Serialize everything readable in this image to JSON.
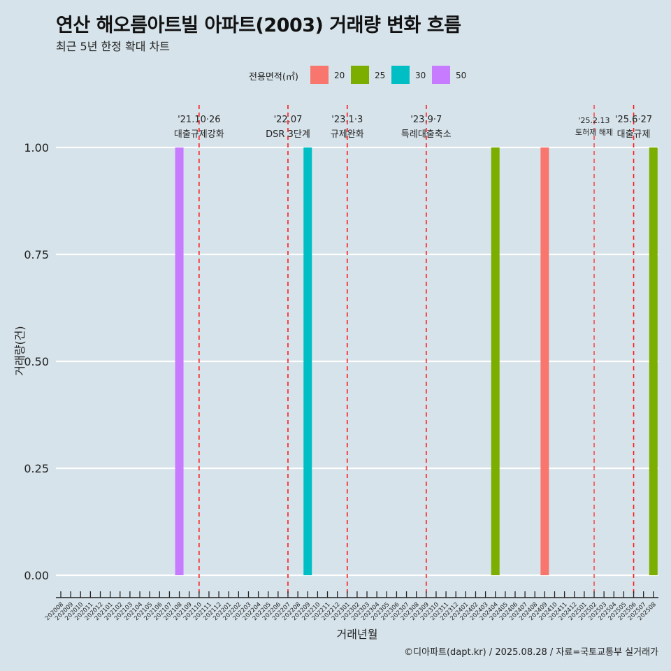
{
  "title": "연산 해오름아트빌 아파트(2003) 거래량 변화 흐름",
  "subtitle": "최근 5년 한정 확대 차트",
  "caption": "©디아파트(dapt.kr) / 2025.08.28 / 자료=국토교통부 실거래가",
  "legend": {
    "title": "전용면적(㎡)",
    "items": [
      {
        "label": "20",
        "color": "#f8766d"
      },
      {
        "label": "25",
        "color": "#7cae00"
      },
      {
        "label": "30",
        "color": "#00bfc4"
      },
      {
        "label": "50",
        "color": "#c77cff"
      }
    ]
  },
  "chart_data": {
    "type": "bar",
    "xlabel": "거래년월",
    "ylabel": "거래량(건)",
    "ylim": [
      0,
      1
    ],
    "yticks": [
      "0.00",
      "0.25",
      "0.50",
      "0.75",
      "1.00"
    ],
    "grid": true,
    "legend_position": "top",
    "categories": [
      "202008",
      "202009",
      "202010",
      "202011",
      "202012",
      "202101",
      "202102",
      "202103",
      "202104",
      "202105",
      "202106",
      "202107",
      "202108",
      "202109",
      "202110",
      "202111",
      "202112",
      "202201",
      "202202",
      "202203",
      "202204",
      "202205",
      "202206",
      "202207",
      "202208",
      "202209",
      "202210",
      "202211",
      "202212",
      "202301",
      "202302",
      "202303",
      "202304",
      "202305",
      "202306",
      "202307",
      "202308",
      "202309",
      "202310",
      "202311",
      "202312",
      "202401",
      "202402",
      "202403",
      "202404",
      "202405",
      "202406",
      "202407",
      "202408",
      "202409",
      "202410",
      "202411",
      "202412",
      "202501",
      "202502",
      "202503",
      "202504",
      "202505",
      "202506",
      "202507",
      "202508"
    ],
    "bars": [
      {
        "month": "202108",
        "area": "50",
        "value": 1
      },
      {
        "month": "202209",
        "area": "30",
        "value": 1
      },
      {
        "month": "202404",
        "area": "25",
        "value": 1
      },
      {
        "month": "202409",
        "area": "20",
        "value": 1
      },
      {
        "month": "202508",
        "area": "25",
        "value": 1
      }
    ],
    "annotations": [
      {
        "month": "202110",
        "date": "'21.10·26",
        "text": "대출규제강화",
        "small": false
      },
      {
        "month": "202207",
        "date": "'22.07",
        "text": "DSR 3단계",
        "small": false
      },
      {
        "month": "202301",
        "date": "'23.1·3",
        "text": "규제완화",
        "small": false
      },
      {
        "month": "202309",
        "date": "'23.9·7",
        "text": "특례대출축소",
        "small": false
      },
      {
        "month": "202502",
        "date": "'25.2.13",
        "text": "토허제 해제",
        "small": true
      },
      {
        "month": "202506",
        "date": "'25.6·27",
        "text": "대출규제",
        "small": false
      }
    ]
  }
}
